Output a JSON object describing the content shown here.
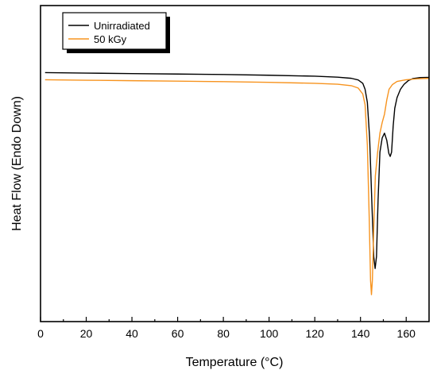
{
  "chart_data": {
    "type": "line",
    "xlabel": "Temperature (°C)",
    "ylabel": "Heat Flow (Endo Down)",
    "xlim": [
      0,
      170
    ],
    "xticks": [
      0,
      20,
      40,
      60,
      80,
      100,
      120,
      140,
      160
    ],
    "ylim": [
      0,
      100
    ],
    "yticks_labeled": false,
    "grid": false,
    "legend": "top-left",
    "series": [
      {
        "name": "Unirradiated",
        "color": "#000000",
        "points": [
          [
            2,
            95.5
          ],
          [
            20,
            95.3
          ],
          [
            40,
            95.1
          ],
          [
            60,
            94.9
          ],
          [
            80,
            94.7
          ],
          [
            100,
            94.4
          ],
          [
            120,
            94.0
          ],
          [
            130,
            93.6
          ],
          [
            136,
            93.1
          ],
          [
            139,
            92.4
          ],
          [
            141,
            91.0
          ],
          [
            142,
            88.5
          ],
          [
            143,
            83.0
          ],
          [
            144,
            68.0
          ],
          [
            145,
            40.0
          ],
          [
            145.8,
            18.0
          ],
          [
            146.4,
            13.0
          ],
          [
            147,
            18.0
          ],
          [
            147.7,
            42.0
          ],
          [
            148.5,
            62.0
          ],
          [
            149.5,
            68.0
          ],
          [
            150.5,
            70.0
          ],
          [
            151.5,
            67.0
          ],
          [
            152.4,
            61.5
          ],
          [
            153,
            60.2
          ],
          [
            153.6,
            62.0
          ],
          [
            154.3,
            73.0
          ],
          [
            155,
            80.5
          ],
          [
            156,
            85.0
          ],
          [
            157.5,
            88.5
          ],
          [
            159,
            90.5
          ],
          [
            161,
            92.2
          ],
          [
            163,
            93.0
          ],
          [
            166,
            93.4
          ],
          [
            170,
            93.5
          ]
        ]
      },
      {
        "name": "50 kGy",
        "color": "#F7931E",
        "points": [
          [
            2,
            92.5
          ],
          [
            20,
            92.3
          ],
          [
            40,
            92.1
          ],
          [
            60,
            91.9
          ],
          [
            80,
            91.7
          ],
          [
            100,
            91.4
          ],
          [
            120,
            91.0
          ],
          [
            130,
            90.6
          ],
          [
            136,
            90.0
          ],
          [
            139,
            89.0
          ],
          [
            141,
            86.5
          ],
          [
            142,
            82.0
          ],
          [
            143,
            65.0
          ],
          [
            143.8,
            35.0
          ],
          [
            144.4,
            8.0
          ],
          [
            144.8,
            2.0
          ],
          [
            145.2,
            8.0
          ],
          [
            145.8,
            30.0
          ],
          [
            146.5,
            52.0
          ],
          [
            147.5,
            62.0
          ],
          [
            148.5,
            70.0
          ],
          [
            149.5,
            74.5
          ],
          [
            150.5,
            78.0
          ],
          [
            151.5,
            84.0
          ],
          [
            152.5,
            88.5
          ],
          [
            154,
            90.5
          ],
          [
            156,
            91.8
          ],
          [
            160,
            92.5
          ],
          [
            165,
            92.9
          ],
          [
            170,
            93.1
          ]
        ]
      }
    ]
  }
}
